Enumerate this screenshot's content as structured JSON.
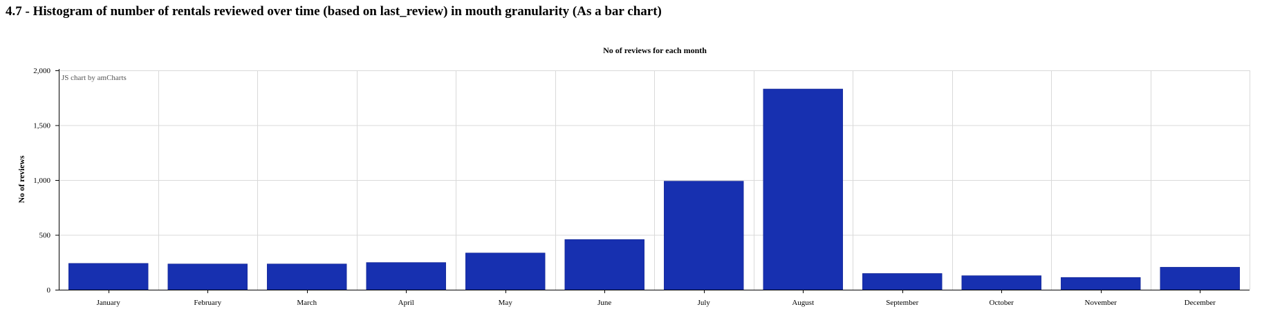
{
  "page": {
    "heading": "4.7 - Histogram of number of rentals reviewed over time (based on last_review) in mouth granularity (As a bar chart)"
  },
  "chart_data": {
    "type": "bar",
    "title": "No of reviews for each month",
    "credit": "JS chart by amCharts",
    "xlabel": "",
    "ylabel": "No of reviews",
    "ylim": [
      0,
      2000
    ],
    "yticks": [
      0,
      500,
      1000,
      1500,
      2000
    ],
    "ytick_labels": [
      "0",
      "500",
      "1,000",
      "1,500",
      "2,000"
    ],
    "grid": true,
    "bar_color": "#1730B0",
    "categories": [
      "January",
      "February",
      "March",
      "April",
      "May",
      "June",
      "July",
      "August",
      "September",
      "October",
      "November",
      "December"
    ],
    "values": [
      240,
      235,
      235,
      248,
      335,
      458,
      990,
      1830,
      148,
      128,
      112,
      205
    ]
  }
}
